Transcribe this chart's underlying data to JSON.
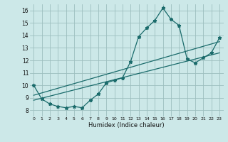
{
  "xlabel": "Humidex (Indice chaleur)",
  "bg_color": "#cce8e8",
  "grid_color": "#9dbfbf",
  "line_color": "#1a6b6b",
  "xlim": [
    -0.5,
    23.5
  ],
  "ylim": [
    7.5,
    16.5
  ],
  "xticks": [
    0,
    1,
    2,
    3,
    4,
    5,
    6,
    7,
    8,
    9,
    10,
    11,
    12,
    13,
    14,
    15,
    16,
    17,
    18,
    19,
    20,
    21,
    22,
    23
  ],
  "yticks": [
    8,
    9,
    10,
    11,
    12,
    13,
    14,
    15,
    16
  ],
  "main_x": [
    0,
    1,
    2,
    3,
    4,
    5,
    6,
    7,
    8,
    9,
    10,
    11,
    12,
    13,
    14,
    15,
    16,
    17,
    18,
    19,
    20,
    21,
    22,
    23
  ],
  "main_y": [
    10.0,
    8.9,
    8.5,
    8.3,
    8.2,
    8.3,
    8.2,
    8.8,
    9.3,
    10.2,
    10.4,
    10.6,
    11.9,
    13.9,
    14.6,
    15.2,
    16.2,
    15.3,
    14.8,
    12.1,
    11.8,
    12.2,
    12.6,
    13.8
  ],
  "line2_x": [
    0,
    23
  ],
  "line2_y": [
    8.8,
    12.6
  ],
  "line3_x": [
    0,
    23
  ],
  "line3_y": [
    9.2,
    13.5
  ],
  "marker": "*",
  "markersize": 3.5,
  "linewidth": 0.9
}
